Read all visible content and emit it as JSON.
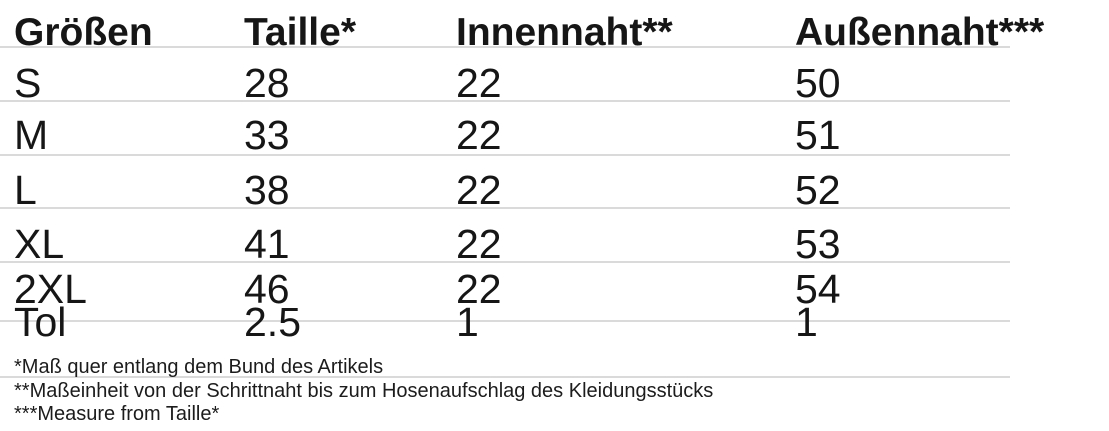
{
  "table": {
    "columns": [
      "Größen",
      "Taille*",
      "Innennaht**",
      "Außennaht***"
    ],
    "rows": [
      {
        "size": "S",
        "taille": "28",
        "innennaht": "22",
        "aussennaht": "50"
      },
      {
        "size": "M",
        "taille": "33",
        "innennaht": "22",
        "aussennaht": "51"
      },
      {
        "size": "L",
        "taille": "38",
        "innennaht": "22",
        "aussennaht": "52"
      },
      {
        "size": "XL",
        "taille": "41",
        "innennaht": "22",
        "aussennaht": "53"
      },
      {
        "size": "2XL",
        "taille": "46",
        "innennaht": "22",
        "aussennaht": "54"
      },
      {
        "size": "Tol",
        "taille": "2.5",
        "innennaht": "1",
        "aussennaht": "1"
      }
    ]
  },
  "footnotes": [
    "*Maß quer entlang dem Bund des Artikels",
    "**Maßeinheit von der Schrittnaht bis zum Hosenaufschlag des Kleidungsstücks",
    "***Measure from Taille*"
  ]
}
